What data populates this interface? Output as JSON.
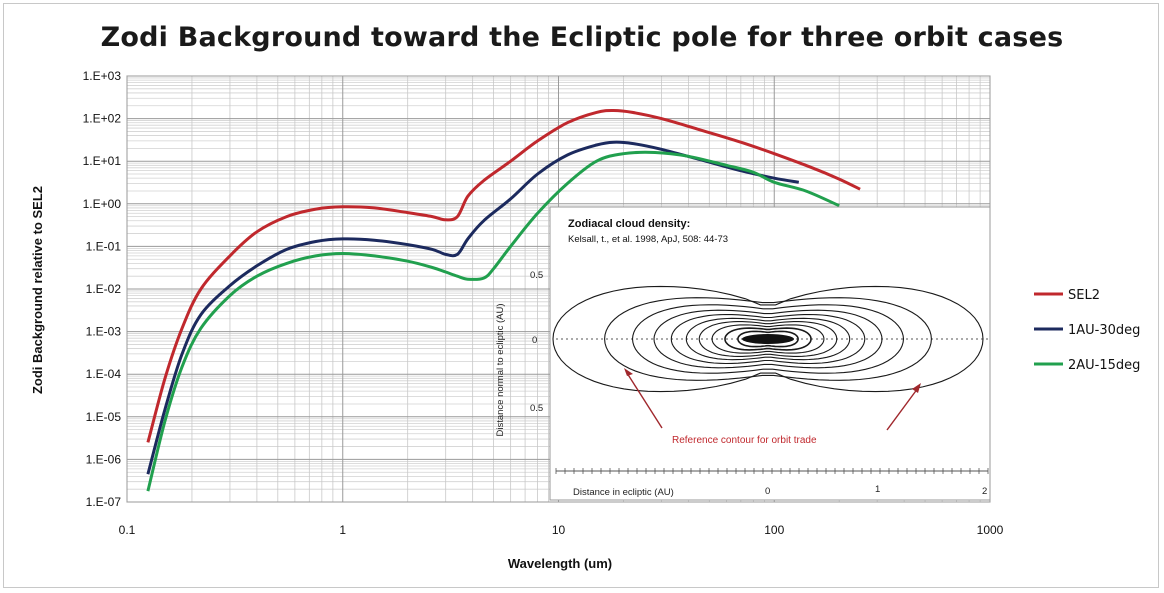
{
  "chart_data": {
    "type": "line",
    "title": "Zodi Background toward the Ecliptic pole for three orbit cases",
    "xlabel": "Wavelength (um)",
    "ylabel": "Zodi Background relative to SEL2",
    "x_scale": "log",
    "y_scale": "log",
    "xlim": [
      0.1,
      1000
    ],
    "ylim": [
      1e-07,
      1000
    ],
    "x_ticks": [
      "0.1",
      "1",
      "10",
      "100",
      "1000"
    ],
    "y_ticks": [
      "1.E-07",
      "1.E-06",
      "1.E-05",
      "1.E-04",
      "1.E-03",
      "1.E-02",
      "1.E-01",
      "1.E+00",
      "1.E+01",
      "1.E+02",
      "1.E+03"
    ],
    "grid": true,
    "legend_position": "right",
    "series": [
      {
        "name": "SEL2",
        "color": "#c0282d",
        "x": [
          0.125,
          0.15,
          0.18,
          0.22,
          0.3,
          0.4,
          0.55,
          0.75,
          1.0,
          1.4,
          2.0,
          2.6,
          3.0,
          3.4,
          3.8,
          4.5,
          6.0,
          8.0,
          11.0,
          15.0,
          18.0,
          22.0,
          30.0,
          45.0,
          70.0,
          100.0,
          150.0,
          200.0,
          250.0
        ],
        "y": [
          2.5e-06,
          8e-05,
          0.0012,
          0.01,
          0.06,
          0.22,
          0.5,
          0.75,
          0.85,
          0.8,
          0.62,
          0.5,
          0.42,
          0.5,
          1.5,
          3.5,
          10,
          30,
          80,
          140,
          155,
          140,
          100,
          55,
          28,
          15,
          7,
          3.8,
          2.2
        ]
      },
      {
        "name": "1AU-30deg",
        "color": "#1c2a5e",
        "x": [
          0.125,
          0.15,
          0.18,
          0.22,
          0.3,
          0.4,
          0.55,
          0.75,
          1.0,
          1.4,
          2.0,
          2.6,
          3.0,
          3.4,
          3.8,
          4.5,
          6.0,
          8.0,
          11.0,
          15.0,
          18.0,
          22.0,
          30.0,
          45.0,
          70.0,
          100.0,
          130.0
        ],
        "y": [
          4.5e-07,
          1.5e-05,
          0.0003,
          0.0025,
          0.012,
          0.035,
          0.085,
          0.13,
          0.15,
          0.14,
          0.11,
          0.085,
          0.065,
          0.065,
          0.15,
          0.4,
          1.3,
          5,
          14,
          24,
          28,
          26,
          19,
          11,
          6,
          4,
          3.2
        ]
      },
      {
        "name": "2AU-15deg",
        "color": "#21a04e",
        "x": [
          0.125,
          0.15,
          0.18,
          0.22,
          0.3,
          0.4,
          0.55,
          0.75,
          1.0,
          1.4,
          2.0,
          2.6,
          3.0,
          3.4,
          3.8,
          4.5,
          5.0,
          6.0,
          8.0,
          11.0,
          15.0,
          20.0,
          28.0,
          40.0,
          60.0,
          80.0,
          100.0,
          140.0,
          200.0
        ],
        "y": [
          1.8e-07,
          8e-06,
          0.00015,
          0.0012,
          0.007,
          0.02,
          0.04,
          0.06,
          0.068,
          0.06,
          0.045,
          0.032,
          0.025,
          0.02,
          0.017,
          0.018,
          0.03,
          0.1,
          0.6,
          3,
          10,
          15,
          16,
          13,
          8,
          5.5,
          3.2,
          2,
          0.9
        ]
      }
    ]
  },
  "legend": [
    {
      "label": "SEL2",
      "color": "#c0282d"
    },
    {
      "label": "1AU-30deg",
      "color": "#1c2a5e"
    },
    {
      "label": "2AU-15deg",
      "color": "#21a04e"
    }
  ],
  "inset": {
    "title": "Zodiacal cloud density:",
    "citation": "Kelsall, t., et al. 1998, ApJ, 508: 44-73",
    "ylabel": "Distance normal to ecliptic (AU)",
    "xlabel": "Distance in ecliptic (AU)",
    "y_tick_top": "0.5",
    "y_tick_mid": "0",
    "y_tick_bottom": "0.5",
    "x_tick_0": "0",
    "x_tick_1": "1",
    "x_tick_2": "2",
    "annotation": "Reference contour for orbit trade",
    "annotation_color": "#c0282d"
  }
}
